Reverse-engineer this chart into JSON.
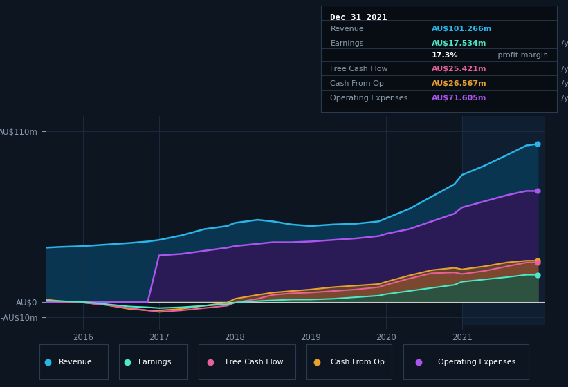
{
  "bg_color": "#0d1520",
  "plot_bg_color": "#0d1520",
  "highlight_bg": "#111d2e",
  "ytick_labels": [
    "AU$110m",
    "AU$0",
    "-AU$10m"
  ],
  "ytick_values": [
    110,
    0,
    -10
  ],
  "ylim": [
    -15,
    120
  ],
  "xlim": [
    2015.5,
    2022.1
  ],
  "xtick_labels": [
    "2016",
    "2017",
    "2018",
    "2019",
    "2020",
    "2021"
  ],
  "xtick_values": [
    2016,
    2017,
    2018,
    2019,
    2020,
    2021
  ],
  "series": {
    "x": [
      2015.5,
      2015.7,
      2016.0,
      2016.3,
      2016.6,
      2016.85,
      2017.0,
      2017.3,
      2017.6,
      2017.9,
      2018.0,
      2018.3,
      2018.5,
      2018.75,
      2019.0,
      2019.3,
      2019.6,
      2019.9,
      2020.0,
      2020.3,
      2020.6,
      2020.9,
      2021.0,
      2021.3,
      2021.6,
      2021.85,
      2022.0
    ],
    "revenue": [
      35,
      35.5,
      36,
      37,
      38,
      39,
      40,
      43,
      47,
      49,
      51,
      53,
      52,
      50,
      49,
      50,
      50.5,
      52,
      54,
      60,
      68,
      76,
      82,
      88,
      95,
      101,
      102
    ],
    "earnings": [
      1.0,
      0.5,
      0.0,
      -1.5,
      -3.0,
      -3.5,
      -4.0,
      -3.5,
      -2.5,
      -1.5,
      -0.5,
      0.5,
      1.0,
      1.5,
      1.5,
      2.0,
      3.0,
      4.0,
      5.0,
      7.0,
      9.0,
      11.0,
      13.0,
      14.5,
      16.0,
      17.5,
      17.5
    ],
    "free_cash_flow": [
      0.5,
      0.2,
      -0.5,
      -2.0,
      -4.0,
      -5.5,
      -6.5,
      -5.5,
      -4.0,
      -2.5,
      -0.5,
      2.0,
      4.5,
      5.5,
      6.0,
      7.0,
      8.0,
      9.5,
      11.0,
      15.0,
      18.5,
      19.0,
      18.0,
      20.0,
      23.0,
      25.4,
      25.4
    ],
    "cash_from_op": [
      1.5,
      0.5,
      -0.5,
      -2.0,
      -4.5,
      -5.5,
      -5.5,
      -4.5,
      -2.5,
      -0.5,
      2.0,
      4.5,
      6.0,
      7.0,
      8.0,
      9.5,
      10.5,
      11.5,
      13.0,
      17.0,
      20.5,
      22.0,
      21.0,
      23.0,
      25.5,
      26.6,
      26.6
    ],
    "operating_expenses": [
      0,
      0,
      0,
      0,
      0,
      0,
      30,
      31,
      33,
      35,
      36,
      37.5,
      38.5,
      38.5,
      39,
      40,
      41,
      42.5,
      44,
      47,
      52,
      57,
      61,
      65,
      69,
      71.6,
      71.6
    ]
  },
  "colors": {
    "revenue": "#2ab5e8",
    "earnings": "#4de8c8",
    "free_cash_flow": "#e8609a",
    "cash_from_op": "#e8a030",
    "operating_expenses": "#aa55ee"
  },
  "fill_revenue": "#0a3550",
  "fill_opex": "#2a1a55",
  "fill_fcf": "#8b2a55",
  "fill_cfo": "#7a5520",
  "fill_earnings": "#1a5545",
  "grid_color": "#1e2d44",
  "zero_line_color": "#cccccc",
  "text_color": "#8899aa",
  "highlight_x": 2021.0,
  "highlight_color": "#0f1e30",
  "legend": [
    {
      "label": "Revenue",
      "color": "#2ab5e8"
    },
    {
      "label": "Earnings",
      "color": "#4de8c8"
    },
    {
      "label": "Free Cash Flow",
      "color": "#e8609a"
    },
    {
      "label": "Cash From Op",
      "color": "#e8a030"
    },
    {
      "label": "Operating Expenses",
      "color": "#aa55ee"
    }
  ],
  "info_box": {
    "date": "Dec 31 2021",
    "rows": [
      {
        "label": "Revenue",
        "value": "AU$101.266m",
        "unit": " /yr",
        "vcolor": "#2ab5e8"
      },
      {
        "label": "Earnings",
        "value": "AU$17.534m",
        "unit": " /yr",
        "vcolor": "#4de8c8"
      },
      {
        "label": "",
        "value": "17.3%",
        "unit": " profit margin",
        "vcolor": "#ffffff"
      },
      {
        "label": "Free Cash Flow",
        "value": "AU$25.421m",
        "unit": " /yr",
        "vcolor": "#e8609a"
      },
      {
        "label": "Cash From Op",
        "value": "AU$26.567m",
        "unit": " /yr",
        "vcolor": "#e8a030"
      },
      {
        "label": "Operating Expenses",
        "value": "AU$71.605m",
        "unit": " /yr",
        "vcolor": "#aa55ee"
      }
    ]
  }
}
